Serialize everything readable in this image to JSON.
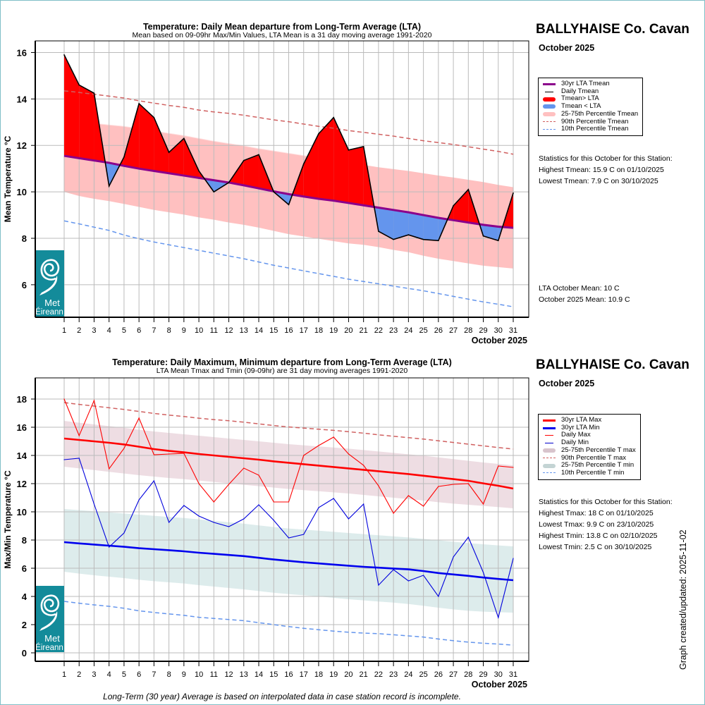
{
  "footer_note": "Long-Term (30 year) Average is based on interpolated data in case station record is incomplete.",
  "updated_label": "Graph created/updated:  2025-11-02",
  "colors": {
    "above_lta": "#ff0000",
    "below_lta": "#6495ed",
    "lta_tmean": "#8b008b",
    "band_tmean": "#ffc0c0",
    "p90_tmean": "#d06060",
    "p10_tmean": "#6495ed",
    "lta_max": "#ff0000",
    "lta_min": "#0000ee",
    "band_tmax": "#eedde3",
    "band_tmin": "#ddecec",
    "logo_bg": "#138b9a"
  },
  "logo": {
    "line1": "Met",
    "line2": "Éireann"
  },
  "top_panel": {
    "station": "BALLYHAISE Co. Cavan",
    "month": "October 2025",
    "legend": [
      {
        "label": "30yr LTA Tmean",
        "swatch": "line",
        "color": "#8b008b"
      },
      {
        "label": "Daily Tmean",
        "swatch": "thin",
        "color": "#000000"
      },
      {
        "label": "Tmean> LTA",
        "swatch": "thick",
        "color": "#ff0000"
      },
      {
        "label": "Tmean < LTA",
        "swatch": "thick",
        "color": "#6495ed"
      },
      {
        "label": "25-75th Percentile Tmean",
        "swatch": "thick",
        "color": "#ffc0c0"
      },
      {
        "label": "90th Percentile Tmean",
        "swatch": "dash",
        "color": "#d06060"
      },
      {
        "label": "10th Percentile Tmean",
        "swatch": "dash",
        "color": "#6495ed"
      }
    ],
    "stats_heading": "Statistics for this October for this Station:",
    "stats": [
      "Highest Tmean: 15.9 C on 01/10/2025",
      "Lowest Tmean: 7.9 C on 30/10/2025"
    ],
    "means": [
      "LTA October Mean: 10 C",
      "October 2025 Mean: 10.9 C"
    ]
  },
  "bottom_panel": {
    "station": "BALLYHAISE Co. Cavan",
    "month": "October 2025",
    "legend": [
      {
        "label": "30yr LTA Max",
        "swatch": "line",
        "color": "#ff0000"
      },
      {
        "label": "30yr LTA Min",
        "swatch": "line",
        "color": "#0000ee"
      },
      {
        "label": "Daily Max",
        "swatch": "thin",
        "color": "#ff0000"
      },
      {
        "label": "Daily Min",
        "swatch": "thin",
        "color": "#0000cc"
      },
      {
        "label": "25-75th Percentile T max",
        "swatch": "thick",
        "color": "#d8c4cc"
      },
      {
        "label": "90th Percentile T max",
        "swatch": "dash",
        "color": "#d06060"
      },
      {
        "label": "25-75th Percentile T min",
        "swatch": "thick",
        "color": "#c4d4d4"
      },
      {
        "label": "10th Percentile T min",
        "swatch": "dash",
        "color": "#6495ed"
      }
    ],
    "stats_heading": "Statistics for this October for this Station:",
    "stats": [
      "Highest Tmax: 18 C on 01/10/2025",
      "Lowest Tmax: 9.9 C on 23/10/2025",
      "Highest Tmin: 13.8 C on 02/10/2025",
      "Lowest Tmin: 2.5 C on 30/10/2025"
    ]
  },
  "chart_data": [
    {
      "type": "area",
      "title": "Temperature: Daily Mean departure from Long-Term Average (LTA)",
      "subtitle": "Mean based on 09-09hr Max/Min Values, LTA Mean is a 31 day moving average 1991-2020",
      "xlabel": "October 2025",
      "ylabel": "Mean Temperature °C",
      "ylim": [
        4.6,
        16.5
      ],
      "yticks": [
        6,
        8,
        10,
        12,
        14,
        16
      ],
      "x": [
        1,
        2,
        3,
        4,
        5,
        6,
        7,
        8,
        9,
        10,
        11,
        12,
        13,
        14,
        15,
        16,
        17,
        18,
        19,
        20,
        21,
        22,
        23,
        24,
        25,
        26,
        27,
        28,
        29,
        30,
        31
      ],
      "grid": true,
      "legend_position": "right",
      "series": [
        {
          "name": "Daily Tmean",
          "values": [
            15.9,
            14.6,
            14.25,
            10.25,
            11.5,
            13.8,
            13.2,
            11.7,
            12.3,
            10.9,
            10.0,
            10.4,
            11.35,
            11.6,
            10.0,
            9.45,
            11.2,
            12.5,
            13.2,
            11.8,
            11.95,
            8.3,
            7.95,
            8.15,
            7.95,
            7.9,
            9.4,
            10.1,
            8.1,
            7.9,
            9.95
          ]
        },
        {
          "name": "30yr LTA Tmean",
          "values": [
            11.55,
            11.45,
            11.35,
            11.25,
            11.12,
            11.0,
            10.9,
            10.8,
            10.7,
            10.6,
            10.5,
            10.4,
            10.28,
            10.15,
            10.02,
            9.9,
            9.8,
            9.7,
            9.62,
            9.52,
            9.42,
            9.32,
            9.22,
            9.12,
            9.0,
            8.88,
            8.78,
            8.68,
            8.58,
            8.5,
            8.45
          ]
        },
        {
          "name": "25th Percentile Tmean",
          "values": [
            10.0,
            9.82,
            9.7,
            9.6,
            9.48,
            9.35,
            9.22,
            9.12,
            9.02,
            8.9,
            8.8,
            8.68,
            8.58,
            8.46,
            8.32,
            8.18,
            8.08,
            7.98,
            7.88,
            7.78,
            7.72,
            7.62,
            7.5,
            7.4,
            7.25,
            7.12,
            7.02,
            6.92,
            6.82,
            6.76,
            6.7
          ]
        },
        {
          "name": "75th Percentile Tmean",
          "values": [
            13.1,
            13.02,
            12.95,
            12.88,
            12.82,
            12.72,
            12.62,
            12.52,
            12.42,
            12.3,
            12.18,
            12.08,
            11.98,
            11.86,
            11.76,
            11.66,
            11.56,
            11.46,
            11.36,
            11.26,
            11.16,
            11.06,
            10.98,
            10.9,
            10.8,
            10.7,
            10.62,
            10.52,
            10.42,
            10.3,
            10.2
          ]
        },
        {
          "name": "90th Percentile Tmean",
          "values": [
            14.35,
            14.28,
            14.2,
            14.12,
            14.04,
            13.92,
            13.82,
            13.72,
            13.64,
            13.52,
            13.44,
            13.38,
            13.3,
            13.2,
            13.1,
            13.02,
            12.92,
            12.82,
            12.74,
            12.64,
            12.56,
            12.48,
            12.4,
            12.3,
            12.2,
            12.12,
            12.04,
            11.94,
            11.84,
            11.74,
            11.62
          ]
        },
        {
          "name": "10th Percentile Tmean",
          "values": [
            8.75,
            8.62,
            8.48,
            8.34,
            8.14,
            7.98,
            7.84,
            7.72,
            7.6,
            7.48,
            7.36,
            7.24,
            7.12,
            6.98,
            6.84,
            6.72,
            6.6,
            6.48,
            6.36,
            6.24,
            6.14,
            6.04,
            5.94,
            5.84,
            5.74,
            5.62,
            5.5,
            5.38,
            5.26,
            5.16,
            5.05
          ]
        }
      ]
    },
    {
      "type": "line",
      "title": "Temperature: Daily Maximum, Minimum departure from Long-Term Average (LTA)",
      "subtitle": "LTA Mean Tmax and Tmin (09-09hr) are 31 day moving averages 1991-2020",
      "xlabel": "October 2025",
      "ylabel": "Max/Min Temperature °C",
      "ylim": [
        -0.6,
        19.5
      ],
      "yticks": [
        0,
        2,
        4,
        6,
        8,
        10,
        12,
        14,
        16,
        18
      ],
      "x": [
        1,
        2,
        3,
        4,
        5,
        6,
        7,
        8,
        9,
        10,
        11,
        12,
        13,
        14,
        15,
        16,
        17,
        18,
        19,
        20,
        21,
        22,
        23,
        24,
        25,
        26,
        27,
        28,
        29,
        30,
        31
      ],
      "grid": true,
      "legend_position": "right",
      "series": [
        {
          "name": "Daily Max",
          "values": [
            18.0,
            15.4,
            17.9,
            13.05,
            14.5,
            16.65,
            14.05,
            14.1,
            14.15,
            12.0,
            10.7,
            11.95,
            13.1,
            12.6,
            10.7,
            10.7,
            14.0,
            14.7,
            15.3,
            14.1,
            13.3,
            11.85,
            9.9,
            11.15,
            10.4,
            11.8,
            11.95,
            12.0,
            10.55,
            13.25,
            13.15
          ]
        },
        {
          "name": "Daily Min",
          "values": [
            13.7,
            13.8,
            10.55,
            7.5,
            8.5,
            10.85,
            12.2,
            9.25,
            10.45,
            9.7,
            9.25,
            8.95,
            9.5,
            10.5,
            9.4,
            8.15,
            8.4,
            10.3,
            10.95,
            9.5,
            10.55,
            4.8,
            5.9,
            5.1,
            5.5,
            4.0,
            6.8,
            8.2,
            5.7,
            2.5,
            6.7
          ]
        },
        {
          "name": "30yr LTA Max",
          "values": [
            15.2,
            15.1,
            15.0,
            14.9,
            14.78,
            14.62,
            14.45,
            14.32,
            14.22,
            14.1,
            14.0,
            13.9,
            13.8,
            13.7,
            13.58,
            13.48,
            13.38,
            13.28,
            13.18,
            13.08,
            12.98,
            12.88,
            12.78,
            12.68,
            12.56,
            12.44,
            12.32,
            12.2,
            12.02,
            11.85,
            11.65
          ]
        },
        {
          "name": "30yr LTA Min",
          "values": [
            7.85,
            7.76,
            7.68,
            7.6,
            7.52,
            7.42,
            7.35,
            7.28,
            7.2,
            7.1,
            7.02,
            6.94,
            6.86,
            6.74,
            6.62,
            6.52,
            6.42,
            6.34,
            6.26,
            6.18,
            6.1,
            6.04,
            5.98,
            5.92,
            5.8,
            5.66,
            5.56,
            5.46,
            5.34,
            5.24,
            5.15
          ]
        },
        {
          "name": "25th Percentile T max",
          "values": [
            13.2,
            13.08,
            12.96,
            12.84,
            12.72,
            12.6,
            12.5,
            12.4,
            12.32,
            12.22,
            12.12,
            12.02,
            11.92,
            11.82,
            11.72,
            11.62,
            11.54,
            11.46,
            11.38,
            11.3,
            11.2,
            11.1,
            11.0,
            10.9,
            10.8,
            10.68,
            10.58,
            10.5,
            10.42,
            10.34,
            10.25
          ]
        },
        {
          "name": "75th Percentile T max",
          "values": [
            16.45,
            16.32,
            16.2,
            16.08,
            15.96,
            15.82,
            15.7,
            15.6,
            15.5,
            15.4,
            15.3,
            15.2,
            15.1,
            15.0,
            14.9,
            14.8,
            14.72,
            14.64,
            14.56,
            14.48,
            14.38,
            14.28,
            14.18,
            14.08,
            13.98,
            13.86,
            13.74,
            13.62,
            13.5,
            13.4,
            13.3
          ]
        },
        {
          "name": "90th Percentile T max",
          "values": [
            17.75,
            17.62,
            17.5,
            17.38,
            17.26,
            17.12,
            16.98,
            16.86,
            16.76,
            16.64,
            16.54,
            16.46,
            16.36,
            16.24,
            16.12,
            16.02,
            15.94,
            15.86,
            15.78,
            15.68,
            15.58,
            15.46,
            15.36,
            15.26,
            15.16,
            15.04,
            14.92,
            14.8,
            14.68,
            14.56,
            14.45
          ]
        },
        {
          "name": "25th Percentile T min",
          "values": [
            5.75,
            5.62,
            5.5,
            5.4,
            5.3,
            5.18,
            5.08,
            5.0,
            4.92,
            4.8,
            4.7,
            4.6,
            4.5,
            4.38,
            4.26,
            4.16,
            4.08,
            4.0,
            3.9,
            3.8,
            3.72,
            3.64,
            3.56,
            3.46,
            3.34,
            3.2,
            3.08,
            2.98,
            2.92,
            2.88,
            2.85
          ]
        },
        {
          "name": "75th Percentile T min",
          "values": [
            10.2,
            10.12,
            10.04,
            9.96,
            9.88,
            9.8,
            9.72,
            9.64,
            9.56,
            9.46,
            9.36,
            9.26,
            9.16,
            9.04,
            8.92,
            8.82,
            8.74,
            8.66,
            8.58,
            8.5,
            8.42,
            8.34,
            8.26,
            8.18,
            8.08,
            7.98,
            7.88,
            7.78,
            7.7,
            7.62,
            7.55
          ]
        },
        {
          "name": "10th Percentile T min",
          "values": [
            3.65,
            3.52,
            3.4,
            3.3,
            3.16,
            2.98,
            2.86,
            2.76,
            2.66,
            2.52,
            2.44,
            2.36,
            2.28,
            2.14,
            2.0,
            1.86,
            1.74,
            1.64,
            1.54,
            1.46,
            1.4,
            1.36,
            1.28,
            1.2,
            1.12,
            0.98,
            0.86,
            0.76,
            0.68,
            0.62,
            0.55
          ]
        }
      ]
    }
  ]
}
